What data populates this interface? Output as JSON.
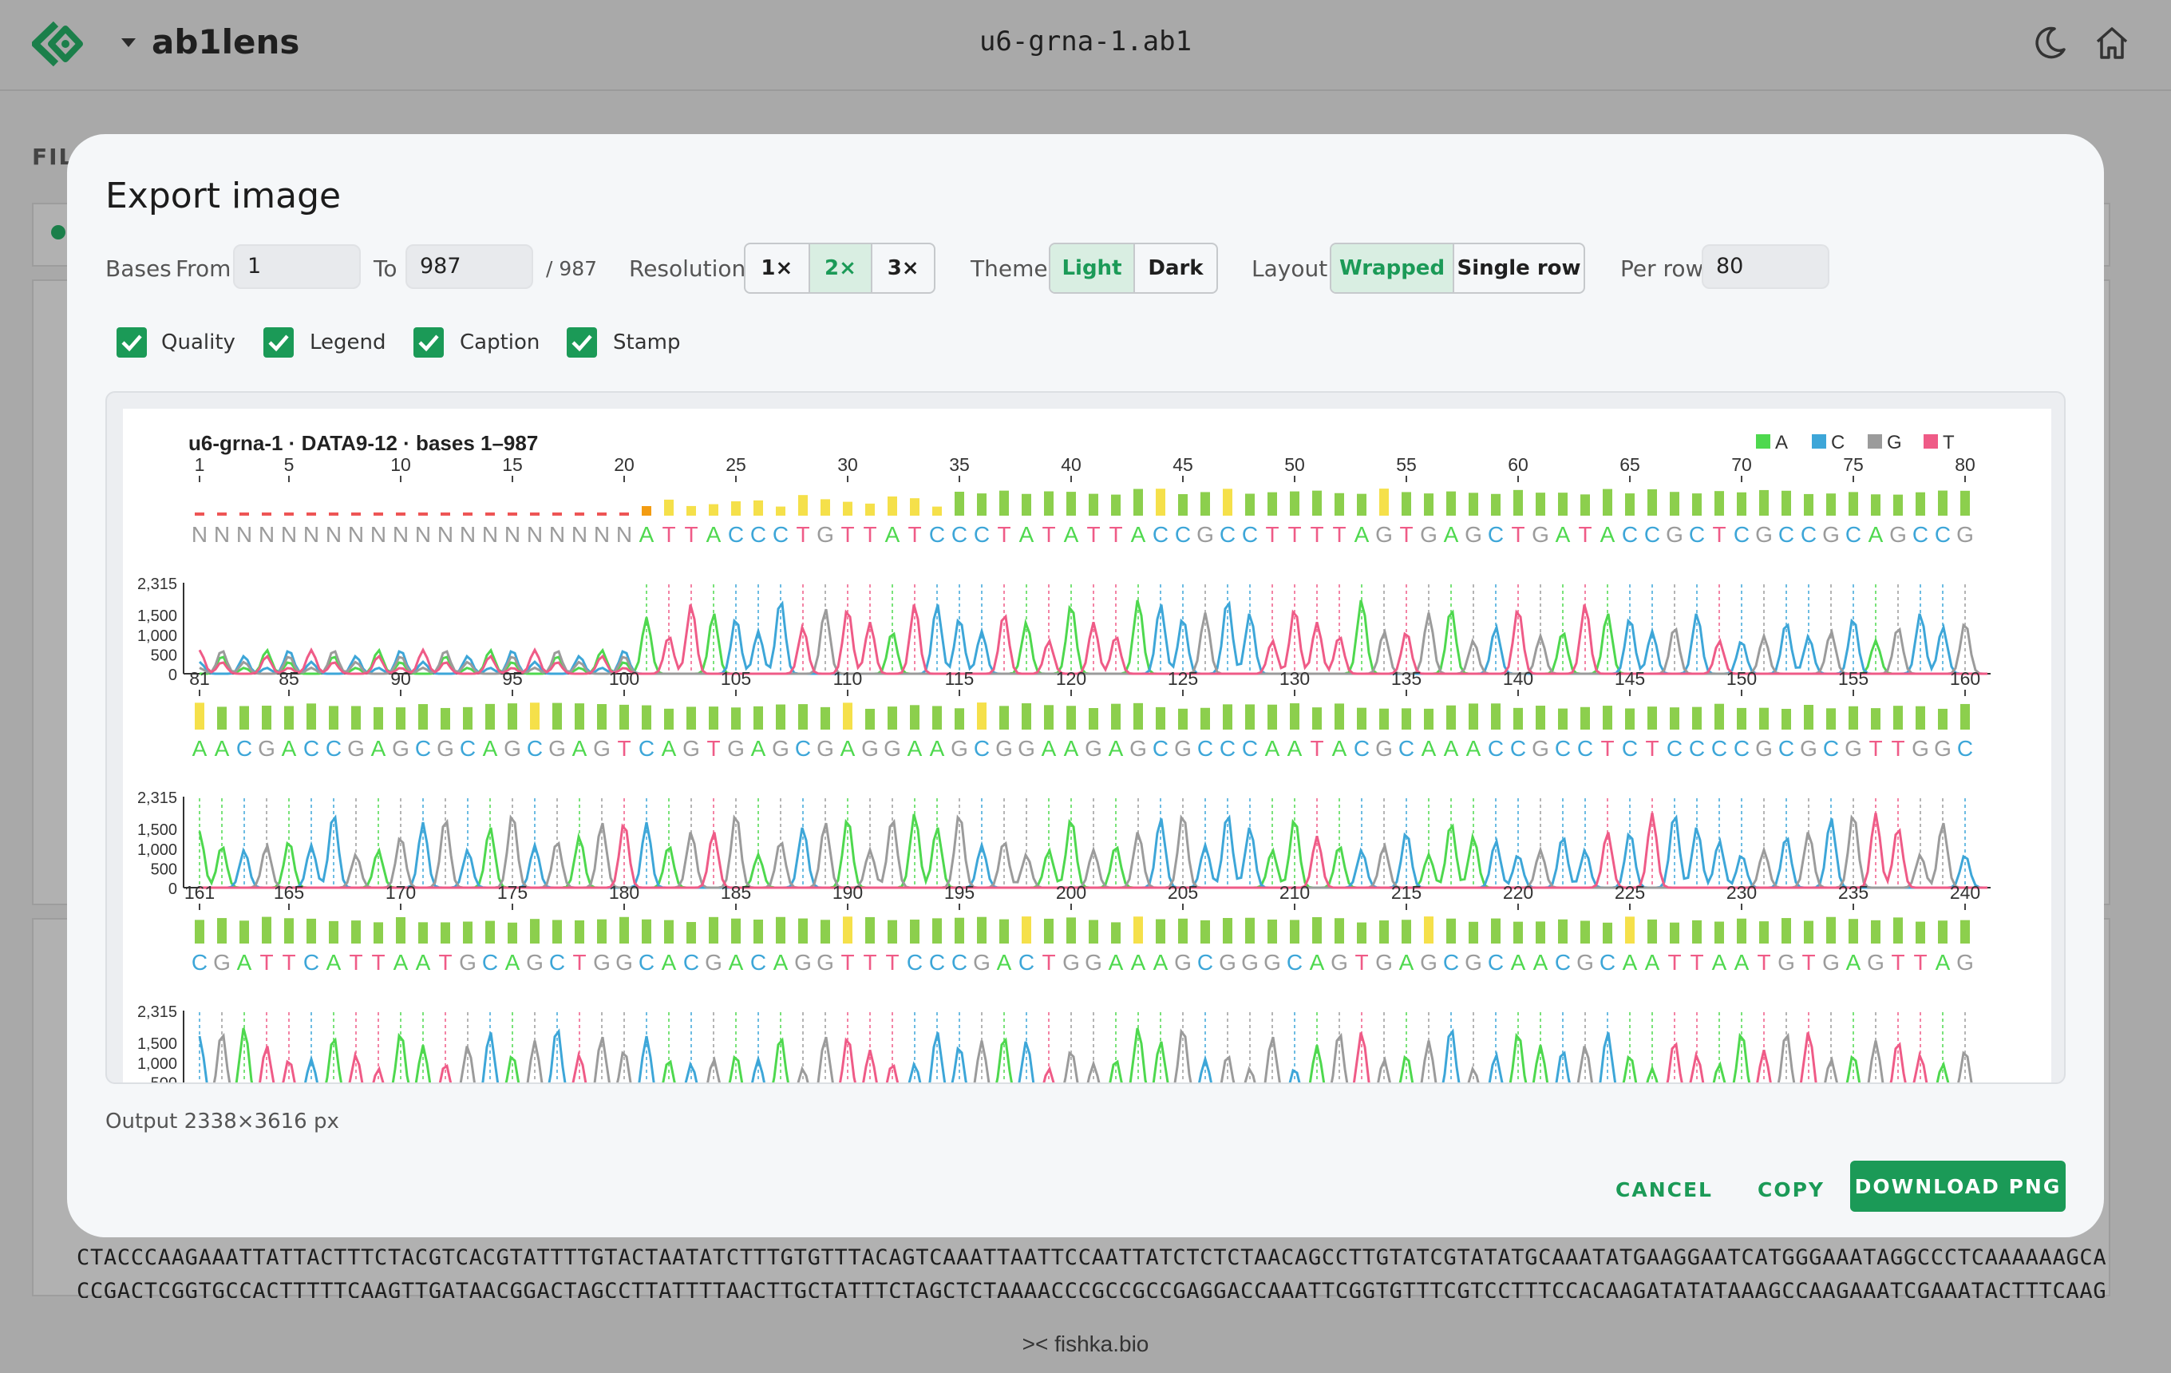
{
  "app": {
    "name": "ab1lens",
    "file_title": "u6-grna-1.ab1",
    "bg_section_label": "FIL",
    "footer": ">< fishka.bio",
    "seq_lines": [
      "CTACCCAAGAAATTATTACTTTCTACGTCACGTATTTTGTACTAATATCTTTGTGTTTACAGTCAAATTAATTCCAATTATCTCTCTAACAGCCTTGTATCGTATATGCAAATATGAAGGAATCATGGGAAATAGGCCCTCAAAAAAGCA",
      "CCGACTCGGTGCCACTTTTTCAAGTTGATAACGGACTAGCCTTATTTTAACTTGCTATTTCTAGCTCTAAAACCCGCCGCCGAGGACCAAATTCGGTGTTTCGTCCTTTCCACAAGATATATAAAGCCAAGAAATCGAAATACTTTCAAG"
    ],
    "icons": [
      "logo-icon",
      "caret-down-icon",
      "moon-icon",
      "home-icon",
      "checkbox-checked-icon"
    ]
  },
  "modal": {
    "title": "Export image",
    "bases_label": "Bases",
    "from_label": "From",
    "from_value": "1",
    "to_label": "To",
    "to_value": "987",
    "total_label": "/ 987",
    "resolution_label": "Resolution",
    "resolution_options": [
      "1×",
      "2×",
      "3×"
    ],
    "resolution_selected": "2×",
    "theme_label": "Theme",
    "theme_options": [
      "Light",
      "Dark"
    ],
    "theme_selected": "Light",
    "layout_label": "Layout",
    "layout_options": [
      "Wrapped",
      "Single row"
    ],
    "layout_selected": "Wrapped",
    "per_row_label": "Per row",
    "per_row_value": "80",
    "checkboxes": [
      {
        "label": "Quality",
        "checked": true
      },
      {
        "label": "Legend",
        "checked": true
      },
      {
        "label": "Caption",
        "checked": true
      },
      {
        "label": "Stamp",
        "checked": true
      }
    ],
    "output_note": "Output 2338×3616 px",
    "cancel_label": "CANCEL",
    "copy_label": "COPY",
    "download_label": "DOWNLOAD PNG",
    "accent_color": "#1b9a57"
  },
  "preview": {
    "caption": "u6-grna-1 · DATA9-12 · bases 1–987",
    "legend": [
      {
        "label": "A",
        "color": "#4ed84e"
      },
      {
        "label": "C",
        "color": "#3da6d8"
      },
      {
        "label": "G",
        "color": "#9b9b9b"
      },
      {
        "label": "T",
        "color": "#ef5b87"
      }
    ],
    "y_ticks": [
      "2,315",
      "1,500",
      "1,000",
      "500",
      "0"
    ],
    "rows": [
      {
        "start": 1,
        "ticks": [
          "1",
          "5",
          "10",
          "15",
          "20",
          "25",
          "30",
          "35",
          "40",
          "45",
          "50",
          "55",
          "60",
          "65",
          "70",
          "75",
          "80"
        ],
        "seq": "NNNNNNNNNNNNNNNNNNNNATTACCCTGTTATCCCTATATTACCGCCTTTTAGTGAGCTGATACCGCTCGCCGCAGCCG"
      },
      {
        "start": 81,
        "ticks": [
          "81",
          "85",
          "90",
          "95",
          "100",
          "105",
          "110",
          "115",
          "120",
          "125",
          "130",
          "135",
          "140",
          "145",
          "150",
          "155",
          "160"
        ],
        "seq": "AACGACCGAGCGCAGCGAGTCAGTGAGCGAGGAAGCGGAAGAGCGCCCAATACGCAAACCGCCTCTCCCCGCGCGTTGGC"
      },
      {
        "start": 161,
        "ticks": [
          "161",
          "165",
          "170",
          "175",
          "180",
          "185",
          "190",
          "195",
          "200",
          "205",
          "210",
          "215",
          "220",
          "225",
          "230",
          "235",
          "240"
        ],
        "seq": "CGATTCATTAATGCAGCTGGCACGACAGGTTTCCCGACTGGAAAGCGGGCAGTGAGCGCAACGCAATTAATGTGAGTTAG"
      }
    ]
  }
}
